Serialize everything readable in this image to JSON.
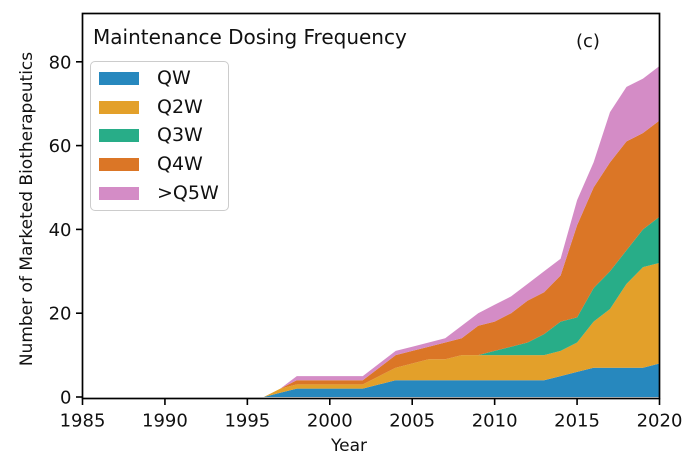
{
  "figure": {
    "title": "Maintenance Dosing Frequency",
    "panel_label": "(c)",
    "xlabel": "Year",
    "ylabel": "Number of Marketed Biotherapeutics"
  },
  "chart_data": {
    "type": "area",
    "stacked": true,
    "title": "Maintenance Dosing Frequency",
    "xlabel": "Year",
    "ylabel": "Number of Marketed Biotherapeutics",
    "xlim": [
      1985,
      2020
    ],
    "ylim": [
      0,
      91
    ],
    "xticks": [
      1985,
      1990,
      1995,
      2000,
      2005,
      2010,
      2015,
      2020
    ],
    "yticks": [
      0,
      20,
      40,
      60,
      80
    ],
    "grid": false,
    "legend_position": "upper left",
    "x": [
      1985,
      1986,
      1987,
      1988,
      1989,
      1990,
      1991,
      1992,
      1993,
      1994,
      1995,
      1996,
      1997,
      1998,
      1999,
      2000,
      2001,
      2002,
      2003,
      2004,
      2005,
      2006,
      2007,
      2008,
      2009,
      2010,
      2011,
      2012,
      2013,
      2014,
      2015,
      2016,
      2017,
      2018,
      2019,
      2020
    ],
    "series": [
      {
        "name": "QW",
        "color": "#2788be",
        "values": [
          0,
          0,
          0,
          0,
          0,
          0,
          0,
          0,
          0,
          0,
          0,
          0,
          1,
          2,
          2,
          2,
          2,
          2,
          3,
          4,
          4,
          4,
          4,
          4,
          4,
          4,
          4,
          4,
          4,
          5,
          6,
          7,
          7,
          7,
          7,
          8
        ]
      },
      {
        "name": "Q2W",
        "color": "#e3a02a",
        "values": [
          0,
          0,
          0,
          0,
          0,
          0,
          0,
          0,
          0,
          0,
          0,
          0,
          1,
          1,
          1,
          1,
          1,
          1,
          2,
          3,
          4,
          5,
          5,
          6,
          6,
          6,
          6,
          6,
          6,
          6,
          7,
          11,
          14,
          20,
          24,
          24
        ]
      },
      {
        "name": "Q3W",
        "color": "#28ad88",
        "values": [
          0,
          0,
          0,
          0,
          0,
          0,
          0,
          0,
          0,
          0,
          0,
          0,
          0,
          0,
          0,
          0,
          0,
          0,
          0,
          0,
          0,
          0,
          0,
          0,
          0,
          1,
          2,
          3,
          5,
          7,
          6,
          8,
          9,
          8,
          9,
          11
        ]
      },
      {
        "name": "Q4W",
        "color": "#db7626",
        "values": [
          0,
          0,
          0,
          0,
          0,
          0,
          0,
          0,
          0,
          0,
          0,
          0,
          0,
          1,
          1,
          1,
          1,
          1,
          2,
          3,
          3,
          3,
          4,
          4,
          7,
          7,
          8,
          10,
          10,
          11,
          22,
          24,
          26,
          26,
          23,
          23
        ]
      },
      {
        "name": ">Q5W",
        "color": "#d48cc6",
        "values": [
          0,
          0,
          0,
          0,
          0,
          0,
          0,
          0,
          0,
          0,
          0,
          0,
          0,
          1,
          1,
          1,
          1,
          1,
          1,
          1,
          1,
          1,
          1,
          3,
          3,
          4,
          4,
          4,
          5,
          4,
          6,
          6,
          12,
          13,
          13,
          13
        ]
      }
    ]
  },
  "styles": {
    "spine_color": "#000000",
    "tick_label_color": "#111111"
  }
}
